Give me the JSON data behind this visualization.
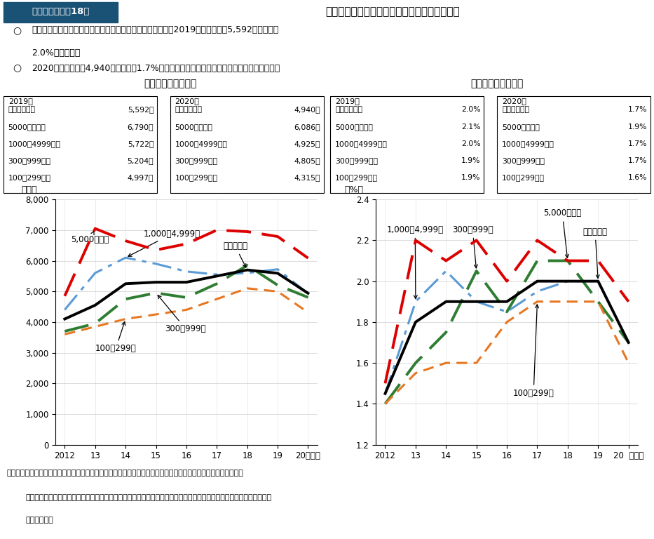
{
  "years": [
    "2012",
    "13",
    "14",
    "15",
    "16",
    "17",
    "18",
    "19",
    "20"
  ],
  "chart1_title": "（１）賃金の改定額",
  "chart2_title": "（２）賃金の改定率",
  "chart1_ylabel": "（円）",
  "chart2_ylabel": "（%）",
  "title_box_text": "第１－（３）－18図",
  "title_text": "一人当たり平均賃金の改定額及び改定率の推移",
  "bullet1_circle": "○",
  "bullet1_line1": "一人当たり平均賃金の改定額（予定を含む。）については、2019年は、改定額5,592円、改定率",
  "bullet1_line2": "2.0%となった。",
  "bullet2_circle": "○",
  "bullet2_text": "2020年は、改定額4,940円、改定率1.7%となり、改定額は、改定率ともに前年を下回った。",
  "table1_2019_title": "2019年",
  "table1_2019_rows": [
    [
      "企業規模計：",
      "5,592円"
    ],
    [
      "5000人以上：",
      "6,790円"
    ],
    [
      "1000～4999人：",
      "5,722円"
    ],
    [
      "300～999人：",
      "5,204円"
    ],
    [
      "100～299人：",
      "4,997円"
    ]
  ],
  "table1_2020_title": "2020年",
  "table1_2020_rows": [
    [
      "企業規模計：",
      "4,940円"
    ],
    [
      "5000人以上：",
      "6,086円"
    ],
    [
      "1000～4999人：",
      "4,925円"
    ],
    [
      "300～999人：",
      "4,805円"
    ],
    [
      "100～299人：",
      "4,315円"
    ]
  ],
  "table2_2019_title": "2019年",
  "table2_2019_rows": [
    [
      "企業規模計：",
      "2.0%"
    ],
    [
      "5000人以上：",
      "2.1%"
    ],
    [
      "1000～4999人：",
      "2.0%"
    ],
    [
      "300～999人：",
      "1.9%"
    ],
    [
      "100～299人：",
      "1.9%"
    ]
  ],
  "table2_2020_title": "2020年",
  "table2_2020_rows": [
    [
      "企業規模計：",
      "1.7%"
    ],
    [
      "5000人以上：",
      "1.9%"
    ],
    [
      "1000～4999人：",
      "1.7%"
    ],
    [
      "300～999人：",
      "1.7%"
    ],
    [
      "100～299人：",
      "1.6%"
    ]
  ],
  "c1_kibo": [
    4100,
    4550,
    5250,
    5300,
    5300,
    5500,
    5700,
    5592,
    4940
  ],
  "c1_5000": [
    4850,
    7050,
    6650,
    6350,
    6550,
    7000,
    6950,
    6790,
    6086
  ],
  "c1_1000": [
    4400,
    5600,
    6100,
    5900,
    5650,
    5550,
    5600,
    5722,
    4925
  ],
  "c1_300": [
    3700,
    3950,
    4750,
    4950,
    4800,
    5250,
    5850,
    5204,
    4805
  ],
  "c1_100": [
    3600,
    3850,
    4100,
    4250,
    4400,
    4750,
    5100,
    4997,
    4315
  ],
  "c2_kibo": [
    1.45,
    1.8,
    1.9,
    1.9,
    1.9,
    2.0,
    2.0,
    2.0,
    1.7
  ],
  "c2_5000": [
    1.5,
    2.2,
    2.1,
    2.2,
    2.0,
    2.2,
    2.1,
    2.1,
    1.9
  ],
  "c2_1000": [
    1.45,
    1.9,
    2.05,
    1.9,
    1.85,
    1.95,
    2.0,
    2.0,
    1.7
  ],
  "c2_300": [
    1.4,
    1.6,
    1.75,
    2.05,
    1.85,
    2.1,
    2.1,
    1.9,
    1.7
  ],
  "c2_100": [
    1.4,
    1.55,
    1.6,
    1.6,
    1.8,
    1.9,
    1.9,
    1.9,
    1.6
  ],
  "color_black": "#000000",
  "color_red": "#dd0000",
  "color_blue": "#5b9bd5",
  "color_green": "#2e7d32",
  "color_orange": "#e87722",
  "source_line1": "資料出所　厚生労働省「賃金引上げ等の実態に関する調査」をもとに厚生労働省政策統括官付政策統括室にて作成",
  "source_line2": "（注）　賃金の改定を実施し又は予定していて額も決定している企業及び賃金の改定を実施しない企業を対象に集計し",
  "source_line3": "　　　　た。"
}
